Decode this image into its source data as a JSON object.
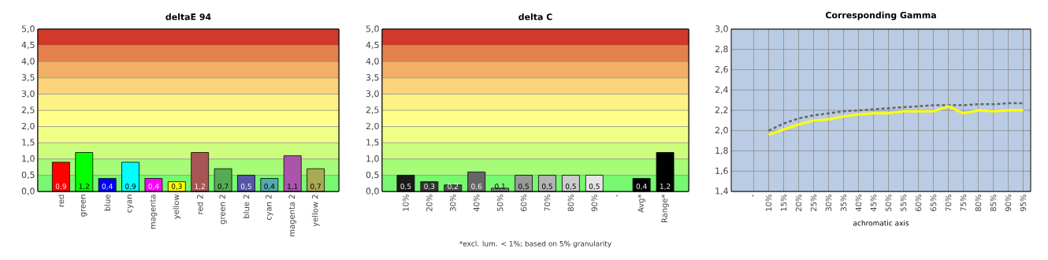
{
  "chart_data": [
    {
      "type": "bar",
      "title": "deltaE 94",
      "categories": [
        "red",
        "green",
        "blue",
        "cyan",
        "magenta",
        "yellow",
        "red 2",
        "green 2",
        "blue 2",
        "cyan 2",
        "magenta 2",
        "yellow 2"
      ],
      "values": [
        0.9,
        1.2,
        0.4,
        0.9,
        0.4,
        0.3,
        1.2,
        0.7,
        0.5,
        0.4,
        1.1,
        0.7
      ],
      "value_labels": [
        "0,9",
        "1,2",
        "0,4",
        "0,9",
        "0,4",
        "0,3",
        "1,2",
        "0,7",
        "0,5",
        "0,4",
        "1,1",
        "0,7"
      ],
      "colors": [
        "#ff0000",
        "#00ff00",
        "#0000ff",
        "#00ffff",
        "#ff00ff",
        "#ffff00",
        "#a85555",
        "#55aa55",
        "#5555aa",
        "#55aaaa",
        "#aa55aa",
        "#aaaa55"
      ],
      "ylim": [
        0,
        5
      ],
      "yticks": [
        {
          "value": 0,
          "label": "0,0"
        },
        {
          "value": 0.5,
          "label": "0,5"
        },
        {
          "value": 1,
          "label": "1,0"
        },
        {
          "value": 1.5,
          "label": "1,5"
        },
        {
          "value": 2,
          "label": "2,0"
        },
        {
          "value": 2.5,
          "label": "2,5"
        },
        {
          "value": 3,
          "label": "3,0"
        },
        {
          "value": 3.5,
          "label": "3,5"
        },
        {
          "value": 4,
          "label": "4,0"
        },
        {
          "value": 4.5,
          "label": "4,5"
        },
        {
          "value": 5,
          "label": "5,0"
        }
      ],
      "grid": "y",
      "bands": [
        {
          "axis": "y",
          "from": 0,
          "to": 0.5,
          "color": "#77f870"
        },
        {
          "axis": "y",
          "from": 0.5,
          "to": 1,
          "color": "#a6fb78"
        },
        {
          "axis": "y",
          "from": 1,
          "to": 1.5,
          "color": "#ccfd7c"
        },
        {
          "axis": "y",
          "from": 1.5,
          "to": 2,
          "color": "#effe84"
        },
        {
          "axis": "y",
          "from": 2,
          "to": 2.5,
          "color": "#ffff88"
        },
        {
          "axis": "y",
          "from": 2.5,
          "to": 3,
          "color": "#fff284"
        },
        {
          "axis": "y",
          "from": 3,
          "to": 3.5,
          "color": "#fbd47a"
        },
        {
          "axis": "y",
          "from": 3.5,
          "to": 4,
          "color": "#f1b066"
        },
        {
          "axis": "y",
          "from": 4,
          "to": 4.5,
          "color": "#e4804c"
        },
        {
          "axis": "y",
          "from": 4.5,
          "to": 5,
          "color": "#cf3a2a"
        }
      ]
    },
    {
      "type": "bar",
      "title": "delta C",
      "categories": [
        "10%",
        "20%",
        "30%",
        "40%",
        "50%",
        "60%",
        "70%",
        "80%",
        "90%",
        "-",
        "Avg*",
        "Range*"
      ],
      "values": [
        0.5,
        0.3,
        0.2,
        0.6,
        0.1,
        0.5,
        0.5,
        0.5,
        0.5,
        null,
        0.4,
        1.2
      ],
      "value_labels": [
        "0,5",
        "0,3",
        "0,2",
        "0,6",
        "0,1",
        "0,5",
        "0,5",
        "0,5",
        "0,5",
        null,
        "0,4",
        "1,2"
      ],
      "colors": [
        "#1a1a1a",
        "#333333",
        "#4d4d4d",
        "#666666",
        "#808080",
        "#999999",
        "#b3b3b3",
        "#cccccc",
        "#e6e6e6",
        "#000000",
        "#000000",
        "#000000"
      ],
      "ylim": [
        0,
        5
      ],
      "yticks": [
        {
          "value": 0,
          "label": "0,0"
        },
        {
          "value": 0.5,
          "label": "0,5"
        },
        {
          "value": 1,
          "label": "1,0"
        },
        {
          "value": 1.5,
          "label": "1,5"
        },
        {
          "value": 2,
          "label": "2,0"
        },
        {
          "value": 2.5,
          "label": "2,5"
        },
        {
          "value": 3,
          "label": "3,0"
        },
        {
          "value": 3.5,
          "label": "3,5"
        },
        {
          "value": 4,
          "label": "4,0"
        },
        {
          "value": 4.5,
          "label": "4,5"
        },
        {
          "value": 5,
          "label": "5,0"
        }
      ],
      "grid": "y",
      "bands": [
        {
          "axis": "y",
          "from": 0,
          "to": 0.5,
          "color": "#77f870"
        },
        {
          "axis": "y",
          "from": 0.5,
          "to": 1,
          "color": "#a6fb78"
        },
        {
          "axis": "y",
          "from": 1,
          "to": 1.5,
          "color": "#ccfd7c"
        },
        {
          "axis": "y",
          "from": 1.5,
          "to": 2,
          "color": "#effe84"
        },
        {
          "axis": "y",
          "from": 2,
          "to": 2.5,
          "color": "#ffff88"
        },
        {
          "axis": "y",
          "from": 2.5,
          "to": 3,
          "color": "#fff284"
        },
        {
          "axis": "y",
          "from": 3,
          "to": 3.5,
          "color": "#fbd47a"
        },
        {
          "axis": "y",
          "from": 3.5,
          "to": 4,
          "color": "#f1b066"
        },
        {
          "axis": "y",
          "from": 4,
          "to": 4.5,
          "color": "#e4804c"
        },
        {
          "axis": "y",
          "from": 4.5,
          "to": 5,
          "color": "#cf3a2a"
        }
      ],
      "annotations": [
        "*excl. lum. < 1%; based on 5% granularity"
      ]
    },
    {
      "type": "line",
      "title": "Corresponding Gamma",
      "xlabel": "achromatic axis",
      "categories": [
        "-",
        "10%",
        "15%",
        "20%",
        "25%",
        "30%",
        "35%",
        "40%",
        "45%",
        "50%",
        "55%",
        "60%",
        "65%",
        "70%",
        "75%",
        "80%",
        "85%",
        "90%",
        "95%"
      ],
      "series": [
        {
          "color": "#666666",
          "line_style": "dotted",
          "values": [
            null,
            2.0,
            2.07,
            2.12,
            2.15,
            2.17,
            2.19,
            2.2,
            2.21,
            2.22,
            2.23,
            2.24,
            2.25,
            2.25,
            2.25,
            2.26,
            2.26,
            2.27,
            2.27
          ]
        },
        {
          "color": "#ffff00",
          "line_style": "solid",
          "values": [
            null,
            1.96,
            2.01,
            2.06,
            2.1,
            2.11,
            2.14,
            2.16,
            2.17,
            2.17,
            2.19,
            2.19,
            2.19,
            2.24,
            2.17,
            2.2,
            2.19,
            2.2,
            2.2
          ]
        }
      ],
      "ylim": [
        1.4,
        3.0
      ],
      "yticks": [
        {
          "value": 1.4,
          "label": "1,4"
        },
        {
          "value": 1.6,
          "label": "1,6"
        },
        {
          "value": 1.8,
          "label": "1,8"
        },
        {
          "value": 2.0,
          "label": "2,0"
        },
        {
          "value": 2.2,
          "label": "2,2"
        },
        {
          "value": 2.4,
          "label": "2,4"
        },
        {
          "value": 2.6,
          "label": "2,6"
        },
        {
          "value": 2.8,
          "label": "2,8"
        },
        {
          "value": 3.0,
          "label": "3,0"
        }
      ],
      "grid": true
    }
  ]
}
